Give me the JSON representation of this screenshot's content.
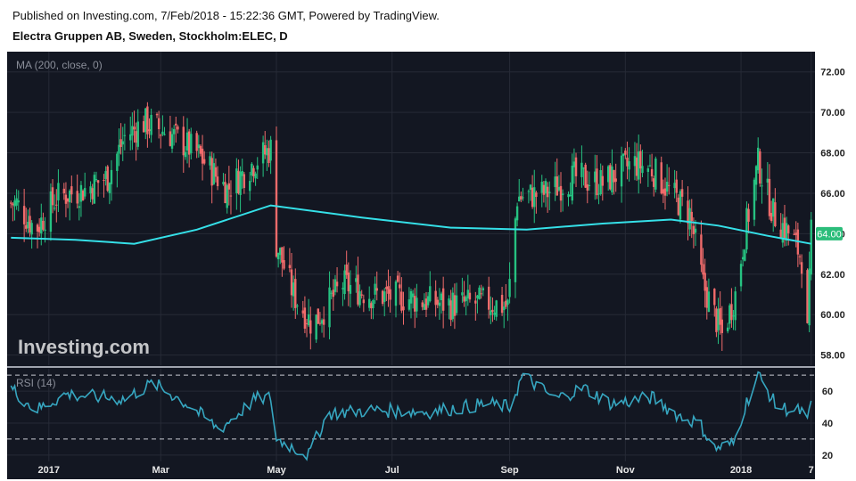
{
  "header": {
    "published": "Published on Investing.com, 7/Feb/2018 - 15:22:36 GMT, Powered by TradingView.",
    "symbol": "Electra Gruppen AB, Sweden, Stockholm:ELEC, D"
  },
  "colors": {
    "background": "#131722",
    "up": "#26c281",
    "down": "#f06b6b",
    "ma": "#35e0e8",
    "rsi": "#36a6c0",
    "grid": "#262a36",
    "axis_text": "#e6e6e6",
    "price_tag": "#2bbd7a"
  },
  "chart_data": [
    {
      "type": "candlestick",
      "indicator_label": "MA (200, close, 0)",
      "watermark": "Investing.com",
      "ylim": [
        57.5,
        73.0
      ],
      "yticks": [
        "72.00",
        "70.00",
        "68.00",
        "66.00",
        "64.00",
        "62.00",
        "60.00",
        "58.00"
      ],
      "last_price": "64.00",
      "x_tick_labels": [
        "2017",
        "Mar",
        "May",
        "Jul",
        "Sep",
        "Nov",
        "2018",
        "7"
      ],
      "close_anchors": [
        {
          "date": "2016-12-15",
          "value": 65.5
        },
        {
          "date": "2016-12-25",
          "value": 64.2
        },
        {
          "date": "2017-01-05",
          "value": 65.8
        },
        {
          "date": "2017-01-20",
          "value": 66.2
        },
        {
          "date": "2017-02-01",
          "value": 66.8
        },
        {
          "date": "2017-02-10",
          "value": 68.8
        },
        {
          "date": "2017-02-20",
          "value": 69.5
        },
        {
          "date": "2017-03-05",
          "value": 69.0
        },
        {
          "date": "2017-03-20",
          "value": 68.0
        },
        {
          "date": "2017-04-05",
          "value": 66.2
        },
        {
          "date": "2017-04-20",
          "value": 67.6
        },
        {
          "date": "2017-04-28",
          "value": 68.2
        },
        {
          "date": "2017-05-01",
          "value": 63.5
        },
        {
          "date": "2017-05-10",
          "value": 61.0
        },
        {
          "date": "2017-05-20",
          "value": 59.5
        },
        {
          "date": "2017-06-05",
          "value": 61.5
        },
        {
          "date": "2017-06-20",
          "value": 61.0
        },
        {
          "date": "2017-07-10",
          "value": 60.8
        },
        {
          "date": "2017-08-01",
          "value": 60.5
        },
        {
          "date": "2017-08-20",
          "value": 60.6
        },
        {
          "date": "2017-08-31",
          "value": 60.4
        },
        {
          "date": "2017-09-05",
          "value": 65.8
        },
        {
          "date": "2017-09-20",
          "value": 66.0
        },
        {
          "date": "2017-10-05",
          "value": 66.8
        },
        {
          "date": "2017-10-20",
          "value": 66.5
        },
        {
          "date": "2017-11-05",
          "value": 67.5
        },
        {
          "date": "2017-11-15",
          "value": 67.2
        },
        {
          "date": "2017-11-25",
          "value": 66.0
        },
        {
          "date": "2017-12-05",
          "value": 65.0
        },
        {
          "date": "2017-12-12",
          "value": 61.5
        },
        {
          "date": "2017-12-22",
          "value": 59.0
        },
        {
          "date": "2017-12-29",
          "value": 61.0
        },
        {
          "date": "2018-01-03",
          "value": 64.0
        },
        {
          "date": "2018-01-10",
          "value": 67.5
        },
        {
          "date": "2018-01-18",
          "value": 65.0
        },
        {
          "date": "2018-01-28",
          "value": 63.8
        },
        {
          "date": "2018-02-03",
          "value": 62.6
        },
        {
          "date": "2018-02-05",
          "value": 59.0
        },
        {
          "date": "2018-02-07",
          "value": 64.0
        }
      ],
      "ma200": [
        {
          "date": "2016-12-12",
          "value": 63.8
        },
        {
          "date": "2017-01-15",
          "value": 63.7
        },
        {
          "date": "2017-02-15",
          "value": 63.5
        },
        {
          "date": "2017-03-20",
          "value": 64.2
        },
        {
          "date": "2017-04-28",
          "value": 65.4
        },
        {
          "date": "2017-06-15",
          "value": 64.8
        },
        {
          "date": "2017-08-01",
          "value": 64.3
        },
        {
          "date": "2017-09-10",
          "value": 64.2
        },
        {
          "date": "2017-10-20",
          "value": 64.5
        },
        {
          "date": "2017-11-25",
          "value": 64.7
        },
        {
          "date": "2017-12-20",
          "value": 64.4
        },
        {
          "date": "2018-01-15",
          "value": 63.9
        },
        {
          "date": "2018-02-07",
          "value": 63.5
        }
      ]
    },
    {
      "type": "line",
      "indicator_label": "RSI (14)",
      "ylim": [
        16,
        74
      ],
      "yticks": [
        "60",
        "40",
        "20"
      ],
      "reference_lines": [
        70,
        30
      ],
      "rsi14": [
        {
          "date": "2016-12-12",
          "value": 62
        },
        {
          "date": "2016-12-25",
          "value": 48
        },
        {
          "date": "2017-01-10",
          "value": 58
        },
        {
          "date": "2017-02-10",
          "value": 55
        },
        {
          "date": "2017-02-25",
          "value": 65
        },
        {
          "date": "2017-03-15",
          "value": 52
        },
        {
          "date": "2017-04-01",
          "value": 36
        },
        {
          "date": "2017-04-20",
          "value": 55
        },
        {
          "date": "2017-04-28",
          "value": 56
        },
        {
          "date": "2017-05-01",
          "value": 30
        },
        {
          "date": "2017-05-18",
          "value": 20
        },
        {
          "date": "2017-05-28",
          "value": 46
        },
        {
          "date": "2017-06-20",
          "value": 48
        },
        {
          "date": "2017-07-20",
          "value": 47
        },
        {
          "date": "2017-08-20",
          "value": 52
        },
        {
          "date": "2017-09-01",
          "value": 50
        },
        {
          "date": "2017-09-08",
          "value": 70
        },
        {
          "date": "2017-09-25",
          "value": 55
        },
        {
          "date": "2017-10-10",
          "value": 62
        },
        {
          "date": "2017-10-25",
          "value": 52
        },
        {
          "date": "2017-11-15",
          "value": 56
        },
        {
          "date": "2017-11-30",
          "value": 44
        },
        {
          "date": "2017-12-10",
          "value": 40
        },
        {
          "date": "2017-12-18",
          "value": 24
        },
        {
          "date": "2017-12-28",
          "value": 27
        },
        {
          "date": "2018-01-03",
          "value": 50
        },
        {
          "date": "2018-01-10",
          "value": 70
        },
        {
          "date": "2018-01-20",
          "value": 50
        },
        {
          "date": "2018-02-03",
          "value": 47
        },
        {
          "date": "2018-02-05",
          "value": 40
        },
        {
          "date": "2018-02-07",
          "value": 52
        }
      ]
    }
  ]
}
